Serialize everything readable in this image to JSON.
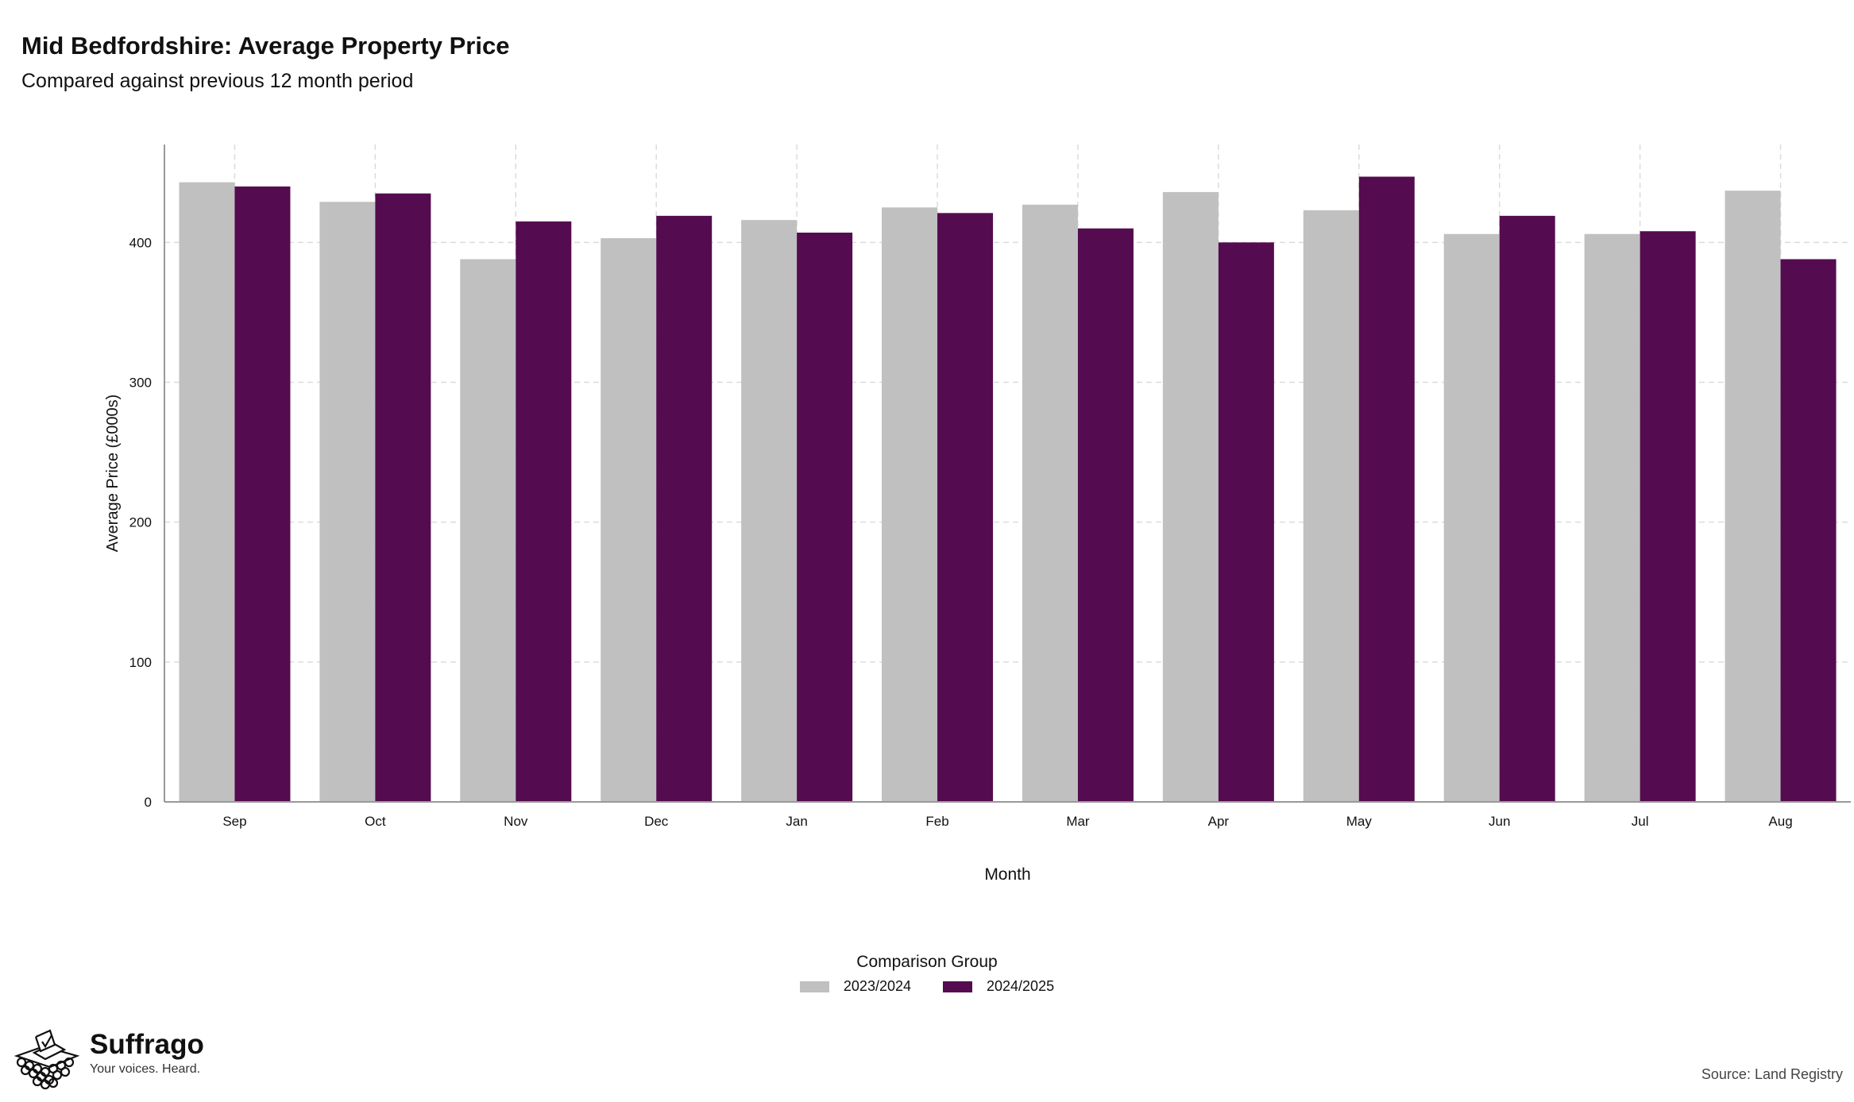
{
  "header": {
    "title": "Mid Bedfordshire: Average Property Price",
    "subtitle": "Compared against previous 12 month period"
  },
  "legend": {
    "title": "Comparison Group",
    "items": [
      {
        "label": "2023/2024",
        "color": "#c0c0c0"
      },
      {
        "label": "2024/2025",
        "color": "#550b50"
      }
    ]
  },
  "brand": {
    "name": "Suffrago",
    "tagline": "Your voices. Heard.",
    "icon": "ballot-box-icon"
  },
  "footer": {
    "source": "Source: Land Registry"
  },
  "chart_data": {
    "type": "bar",
    "xlabel": "Month",
    "ylabel": "Average Price (£000s)",
    "categories": [
      "Sep",
      "Oct",
      "Nov",
      "Dec",
      "Jan",
      "Feb",
      "Mar",
      "Apr",
      "May",
      "Jun",
      "Jul",
      "Aug"
    ],
    "ylim": [
      0,
      470
    ],
    "yticks": [
      0,
      100,
      200,
      300,
      400
    ],
    "grid": true,
    "legend_position": "bottom",
    "series": [
      {
        "name": "2023/2024",
        "color": "#c0c0c0",
        "values": [
          443,
          429,
          388,
          403,
          416,
          425,
          427,
          436,
          423,
          406,
          406,
          437
        ]
      },
      {
        "name": "2024/2025",
        "color": "#550b50",
        "values": [
          440,
          435,
          415,
          419,
          407,
          421,
          410,
          400,
          447,
          419,
          408,
          388
        ]
      }
    ]
  }
}
